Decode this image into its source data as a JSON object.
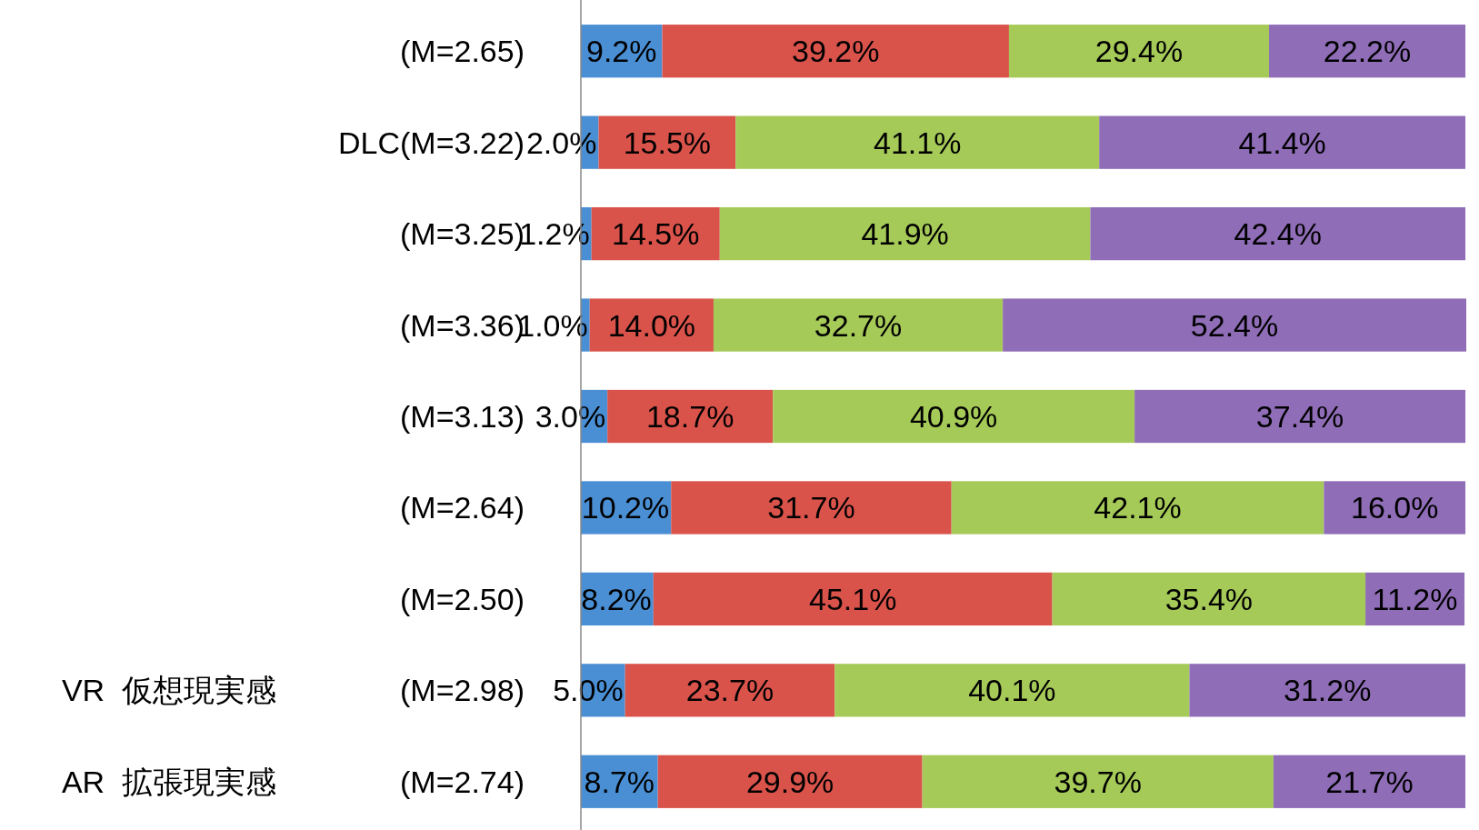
{
  "chart_data": {
    "type": "bar",
    "orientation": "horizontal",
    "stacked": true,
    "categories": [
      "(M=2.65)",
      "DLC(M=3.22)",
      "(M=3.25)",
      "(M=3.36)",
      "(M=3.13)",
      "(M=2.64)",
      "(M=2.50)",
      "VR  仮想現実感　　　　(M=2.98)",
      "AR  拡張現実感　　　　(M=2.74)"
    ],
    "series": [
      {
        "color": "#4a8fd4",
        "values": [
          9.2,
          2.0,
          1.2,
          1.0,
          3.0,
          10.2,
          8.2,
          5.0,
          8.7
        ],
        "value_labels": [
          "9.2%",
          "2.0%",
          "1.2%",
          "1.0%",
          "3.0%",
          "10.2%",
          "8.2%",
          "5.0%",
          "8.7%"
        ]
      },
      {
        "color": "#d9534b",
        "values": [
          39.2,
          15.5,
          14.5,
          14.0,
          18.7,
          31.7,
          45.1,
          23.7,
          29.9
        ],
        "value_labels": [
          "39.2%",
          "15.5%",
          "14.5%",
          "14.0%",
          "18.7%",
          "31.7%",
          "45.1%",
          "23.7%",
          "29.9%"
        ]
      },
      {
        "color": "#a6ca58",
        "values": [
          29.4,
          41.1,
          41.9,
          32.7,
          40.9,
          42.1,
          35.4,
          40.1,
          39.7
        ],
        "value_labels": [
          "29.4%",
          "41.1%",
          "41.9%",
          "32.7%",
          "40.9%",
          "42.1%",
          "35.4%",
          "40.1%",
          "39.7%"
        ]
      },
      {
        "color": "#8f6db7",
        "values": [
          22.2,
          41.4,
          42.4,
          52.4,
          37.4,
          16.0,
          11.2,
          31.2,
          21.7
        ],
        "value_labels": [
          "22.2%",
          "41.4%",
          "42.4%",
          "52.4%",
          "37.4%",
          "16.0%",
          "11.2%",
          "31.2%",
          "21.7%"
        ]
      }
    ]
  }
}
